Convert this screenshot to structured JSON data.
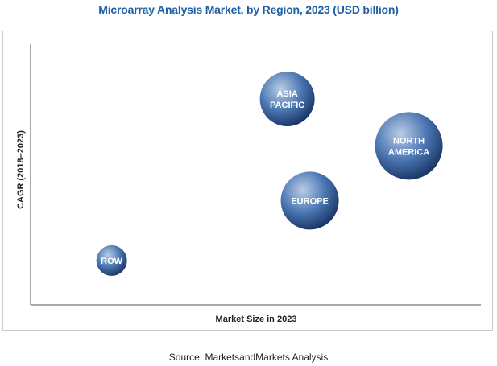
{
  "chart_data": {
    "type": "scatter",
    "title": "Microarray Analysis Market, by Region, 2023 (USD billion)",
    "xlabel": "Market Size in 2023",
    "ylabel": "CAGR (2018–2023)",
    "grid": false,
    "legend": "none",
    "xlim": [
      0,
      100
    ],
    "ylim": [
      0,
      100
    ],
    "series": [
      {
        "points": [
          {
            "label_lines": [
              "ASIA",
              "PACIFIC"
            ],
            "x": 57,
            "y": 79,
            "size": 34
          },
          {
            "label_lines": [
              "NORTH",
              "AMERICA"
            ],
            "x": 84,
            "y": 61,
            "size": 42
          },
          {
            "label_lines": [
              "EUROPE"
            ],
            "x": 62,
            "y": 40,
            "size": 36
          },
          {
            "label_lines": [
              "ROW"
            ],
            "x": 18,
            "y": 17,
            "size": 19
          }
        ]
      }
    ]
  },
  "source": "Source: MarketsandMarkets Analysis",
  "colors": {
    "title": "#1f5fa6",
    "bubble_light": "#b9cde6",
    "bubble_mid": "#4c77b3",
    "bubble_dark": "#1a3766",
    "axis": "#555555"
  }
}
